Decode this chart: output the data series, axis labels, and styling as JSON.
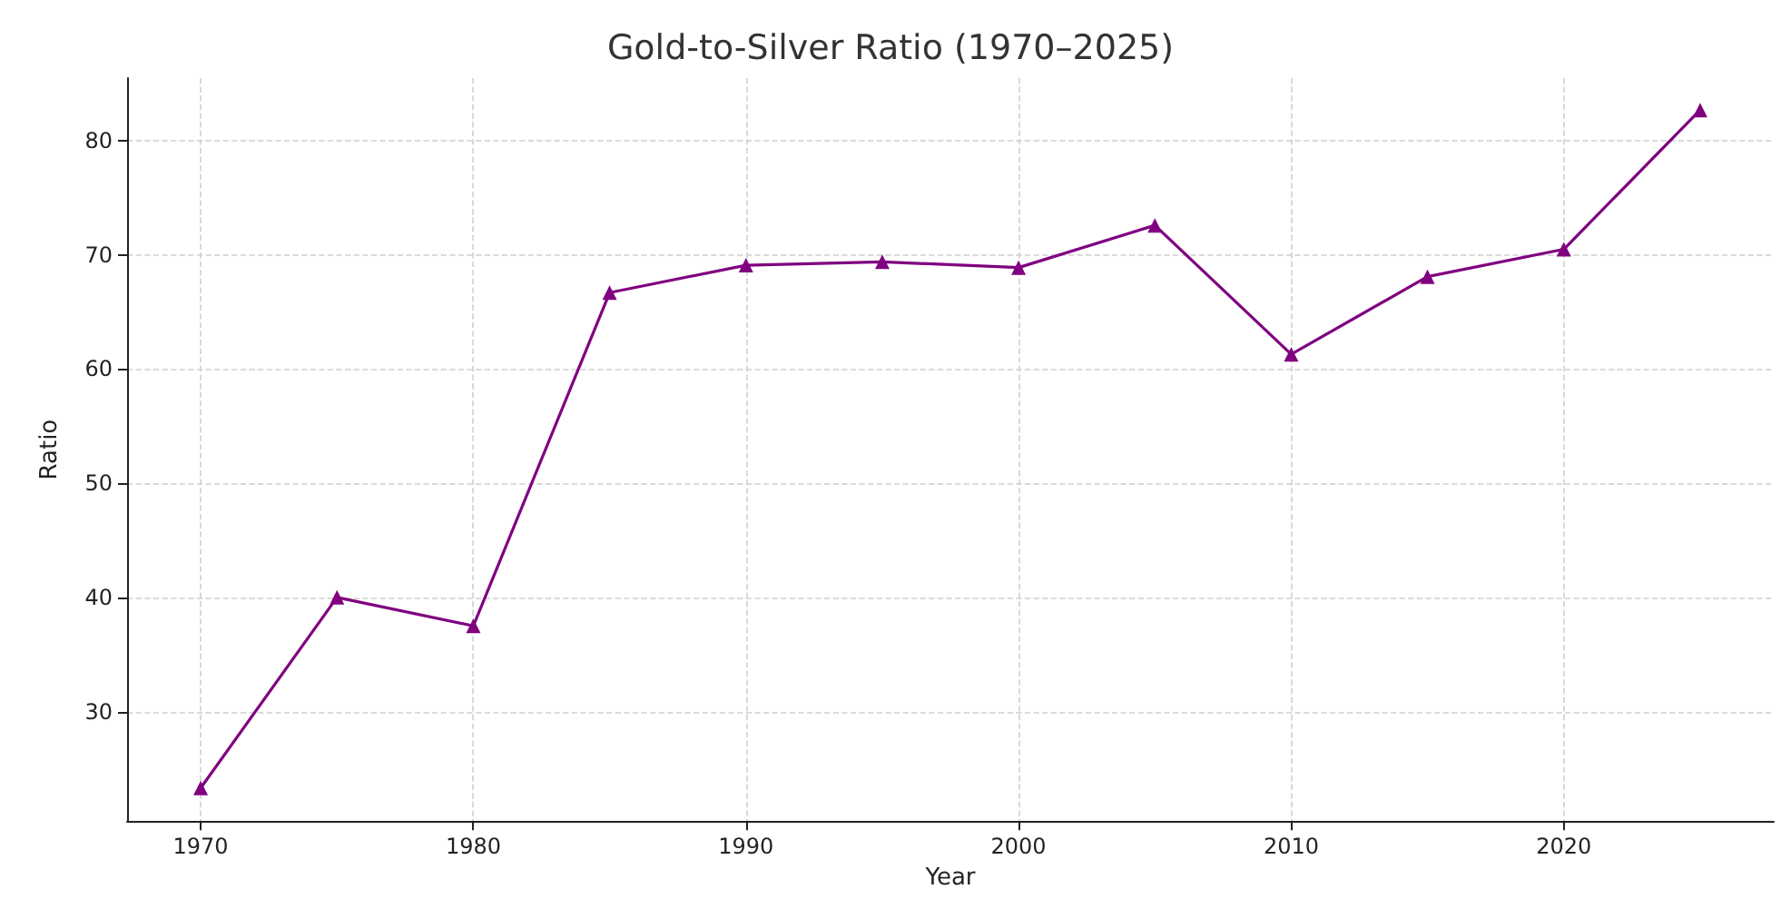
{
  "chart_data": {
    "type": "line",
    "title": "Gold-to-Silver Ratio (1970–2025)",
    "xlabel": "Year",
    "ylabel": "Ratio",
    "x": [
      1970,
      1975,
      1980,
      1985,
      1990,
      1995,
      2000,
      2005,
      2010,
      2015,
      2020,
      2025
    ],
    "series": [
      {
        "color": "#800080",
        "values": [
          23.3,
          40,
          37.5,
          66.7,
          69.1,
          69.4,
          68.9,
          72.6,
          61.3,
          68.1,
          70.5,
          82.7
        ]
      }
    ],
    "xlim": [
      1967.3,
      2027.7
    ],
    "xticks": [
      1970,
      1980,
      1990,
      2000,
      2010,
      2020
    ],
    "ylim": [
      20.4,
      85.5
    ],
    "yticks": [
      30,
      40,
      50,
      60,
      70,
      80
    ],
    "grid": true,
    "marker": "triangle",
    "line_style": "solid"
  }
}
